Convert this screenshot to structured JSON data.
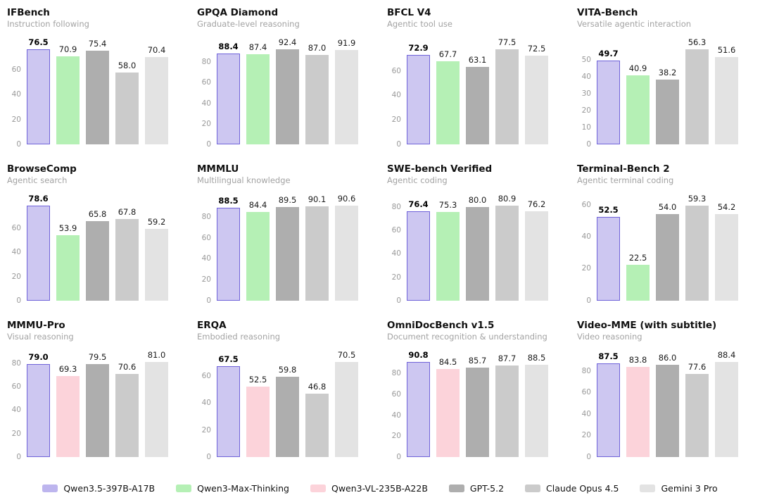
{
  "legend": {
    "position": "bottom-center",
    "entries": [
      {
        "label": "Qwen3.5-397B-A17B",
        "swatch": "#bdb5ee",
        "bar_fill": "#cdc7f1",
        "bar_border": "#6f62d9"
      },
      {
        "label": "Qwen3-Max-Thinking",
        "swatch": "#b5f0b5",
        "bar_fill": "#b5f0b5"
      },
      {
        "label": "Qwen3-VL-235B-A22B",
        "swatch": "#fcd3da",
        "bar_fill": "#fcd3da"
      },
      {
        "label": "GPT-5.2",
        "swatch": "#aeaeae",
        "bar_fill": "#aeaeae"
      },
      {
        "label": "Claude Opus 4.5",
        "swatch": "#cbcbcb",
        "bar_fill": "#cbcbcb"
      },
      {
        "label": "Gemini 3 Pro",
        "swatch": "#e3e3e3",
        "bar_fill": "#e3e3e3"
      }
    ]
  },
  "chart_data": [
    {
      "type": "bar",
      "title": "IFBench",
      "subtitle": "Instruction following",
      "categories": [
        "Qwen3.5-397B-A17B",
        "Qwen3-Max-Thinking",
        "GPT-5.2",
        "Claude Opus 4.5",
        "Gemini 3 Pro"
      ],
      "values": [
        76.5,
        70.9,
        75.4,
        58.0,
        70.4
      ],
      "yticks": [
        0,
        20,
        40,
        60
      ],
      "grid": false,
      "highlight_index": 0
    },
    {
      "type": "bar",
      "title": "GPQA Diamond",
      "subtitle": "Graduate-level reasoning",
      "categories": [
        "Qwen3.5-397B-A17B",
        "Qwen3-Max-Thinking",
        "GPT-5.2",
        "Claude Opus 4.5",
        "Gemini 3 Pro"
      ],
      "values": [
        88.4,
        87.4,
        92.4,
        87.0,
        91.9
      ],
      "yticks": [
        0,
        20,
        40,
        60,
        80
      ],
      "grid": false,
      "highlight_index": 0
    },
    {
      "type": "bar",
      "title": "BFCL V4",
      "subtitle": "Agentic tool use",
      "categories": [
        "Qwen3.5-397B-A17B",
        "Qwen3-Max-Thinking",
        "GPT-5.2",
        "Claude Opus 4.5",
        "Gemini 3 Pro"
      ],
      "values": [
        72.9,
        67.7,
        63.1,
        77.5,
        72.5
      ],
      "yticks": [
        0,
        20,
        40,
        60
      ],
      "grid": false,
      "highlight_index": 0
    },
    {
      "type": "bar",
      "title": "VITA-Bench",
      "subtitle": "Versatile agentic interaction",
      "categories": [
        "Qwen3.5-397B-A17B",
        "Qwen3-Max-Thinking",
        "GPT-5.2",
        "Claude Opus 4.5",
        "Gemini 3 Pro"
      ],
      "values": [
        49.7,
        40.9,
        38.2,
        56.3,
        51.6
      ],
      "yticks": [
        0,
        10,
        20,
        30,
        40,
        50
      ],
      "grid": false,
      "highlight_index": 0
    },
    {
      "type": "bar",
      "title": "BrowseComp",
      "subtitle": "Agentic search",
      "categories": [
        "Qwen3.5-397B-A17B",
        "Qwen3-Max-Thinking",
        "GPT-5.2",
        "Claude Opus 4.5",
        "Gemini 3 Pro"
      ],
      "values": [
        78.6,
        53.9,
        65.8,
        67.8,
        59.2
      ],
      "yticks": [
        0,
        20,
        40,
        60
      ],
      "grid": false,
      "highlight_index": 0
    },
    {
      "type": "bar",
      "title": "MMMLU",
      "subtitle": "Multilingual knowledge",
      "categories": [
        "Qwen3.5-397B-A17B",
        "Qwen3-Max-Thinking",
        "GPT-5.2",
        "Claude Opus 4.5",
        "Gemini 3 Pro"
      ],
      "values": [
        88.5,
        84.4,
        89.5,
        90.1,
        90.6
      ],
      "yticks": [
        0,
        20,
        40,
        60,
        80
      ],
      "grid": false,
      "highlight_index": 0
    },
    {
      "type": "bar",
      "title": "SWE-bench Verified",
      "subtitle": "Agentic coding",
      "categories": [
        "Qwen3.5-397B-A17B",
        "Qwen3-Max-Thinking",
        "GPT-5.2",
        "Claude Opus 4.5",
        "Gemini 3 Pro"
      ],
      "values": [
        76.4,
        75.3,
        80.0,
        80.9,
        76.2
      ],
      "yticks": [
        0,
        20,
        40,
        60,
        80
      ],
      "grid": false,
      "highlight_index": 0
    },
    {
      "type": "bar",
      "title": "Terminal-Bench 2",
      "subtitle": "Agentic terminal coding",
      "categories": [
        "Qwen3.5-397B-A17B",
        "Qwen3-Max-Thinking",
        "GPT-5.2",
        "Claude Opus 4.5",
        "Gemini 3 Pro"
      ],
      "values": [
        52.5,
        22.5,
        54.0,
        59.3,
        54.2
      ],
      "yticks": [
        0,
        20,
        40,
        60
      ],
      "grid": false,
      "highlight_index": 0
    },
    {
      "type": "bar",
      "title": "MMMU-Pro",
      "subtitle": "Visual reasoning",
      "categories": [
        "Qwen3.5-397B-A17B",
        "Qwen3-VL-235B-A22B",
        "GPT-5.2",
        "Claude Opus 4.5",
        "Gemini 3 Pro"
      ],
      "values": [
        79.0,
        69.3,
        79.5,
        70.6,
        81.0
      ],
      "yticks": [
        0,
        20,
        40,
        60,
        80
      ],
      "grid": false,
      "highlight_index": 0
    },
    {
      "type": "bar",
      "title": "ERQA",
      "subtitle": "Embodied reasoning",
      "categories": [
        "Qwen3.5-397B-A17B",
        "Qwen3-VL-235B-A22B",
        "GPT-5.2",
        "Claude Opus 4.5",
        "Gemini 3 Pro"
      ],
      "values": [
        67.5,
        52.5,
        59.8,
        46.8,
        70.5
      ],
      "yticks": [
        0,
        20,
        40,
        60
      ],
      "grid": false,
      "highlight_index": 0
    },
    {
      "type": "bar",
      "title": "OmniDocBench v1.5",
      "subtitle": "Document recognition &amp; understanding",
      "subtitle_plain": "Document recognition & understanding",
      "categories": [
        "Qwen3.5-397B-A17B",
        "Qwen3-VL-235B-A22B",
        "GPT-5.2",
        "Claude Opus 4.5",
        "Gemini 3 Pro"
      ],
      "values": [
        90.8,
        84.5,
        85.7,
        87.7,
        88.5
      ],
      "yticks": [
        0,
        20,
        40,
        60,
        80
      ],
      "grid": false,
      "highlight_index": 0
    },
    {
      "type": "bar",
      "title": "Video-MME (with subtitle)",
      "subtitle": "Video reasoning",
      "categories": [
        "Qwen3.5-397B-A17B",
        "Qwen3-VL-235B-A22B",
        "GPT-5.2",
        "Claude Opus 4.5",
        "Gemini 3 Pro"
      ],
      "values": [
        87.5,
        83.8,
        86.0,
        77.6,
        88.4
      ],
      "yticks": [
        0,
        20,
        40,
        60,
        80
      ],
      "grid": false,
      "highlight_index": 0
    }
  ]
}
